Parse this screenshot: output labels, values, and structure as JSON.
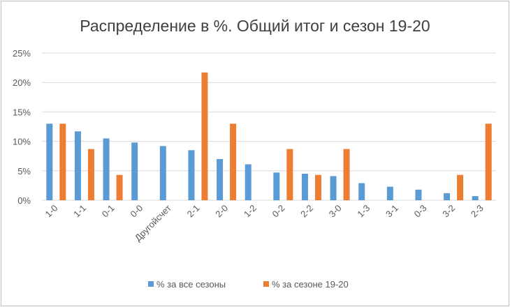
{
  "chart_data": {
    "type": "bar",
    "title": "Распределение в %. Общий итог и сезон 19-20",
    "xlabel": "",
    "ylabel": "",
    "ylim": [
      0,
      25
    ],
    "yticks": [
      "0%",
      "5%",
      "10%",
      "15%",
      "20%",
      "25%"
    ],
    "grid": true,
    "legend_position": "bottom",
    "categories": [
      "1-0",
      "1-1",
      "0-1",
      "0-0",
      "Другойсчет",
      "2-1",
      "2-0",
      "1-2",
      "0-2",
      "2-2",
      "3-0",
      "1-3",
      "3-1",
      "0-3",
      "3-2",
      "2-3"
    ],
    "series": [
      {
        "name": "% за все сезоны",
        "color": "#5b9bd5",
        "values": [
          13.0,
          11.7,
          10.5,
          9.8,
          9.2,
          8.5,
          7.0,
          6.1,
          4.7,
          4.5,
          4.1,
          2.9,
          2.3,
          1.8,
          1.2,
          0.7
        ]
      },
      {
        "name": "% за сезоне 19-20",
        "color": "#ed7d31",
        "values": [
          13.0,
          8.7,
          4.3,
          0,
          0,
          21.7,
          13.0,
          0,
          8.7,
          4.3,
          8.7,
          0,
          0,
          0,
          4.3,
          13.0
        ]
      }
    ]
  }
}
